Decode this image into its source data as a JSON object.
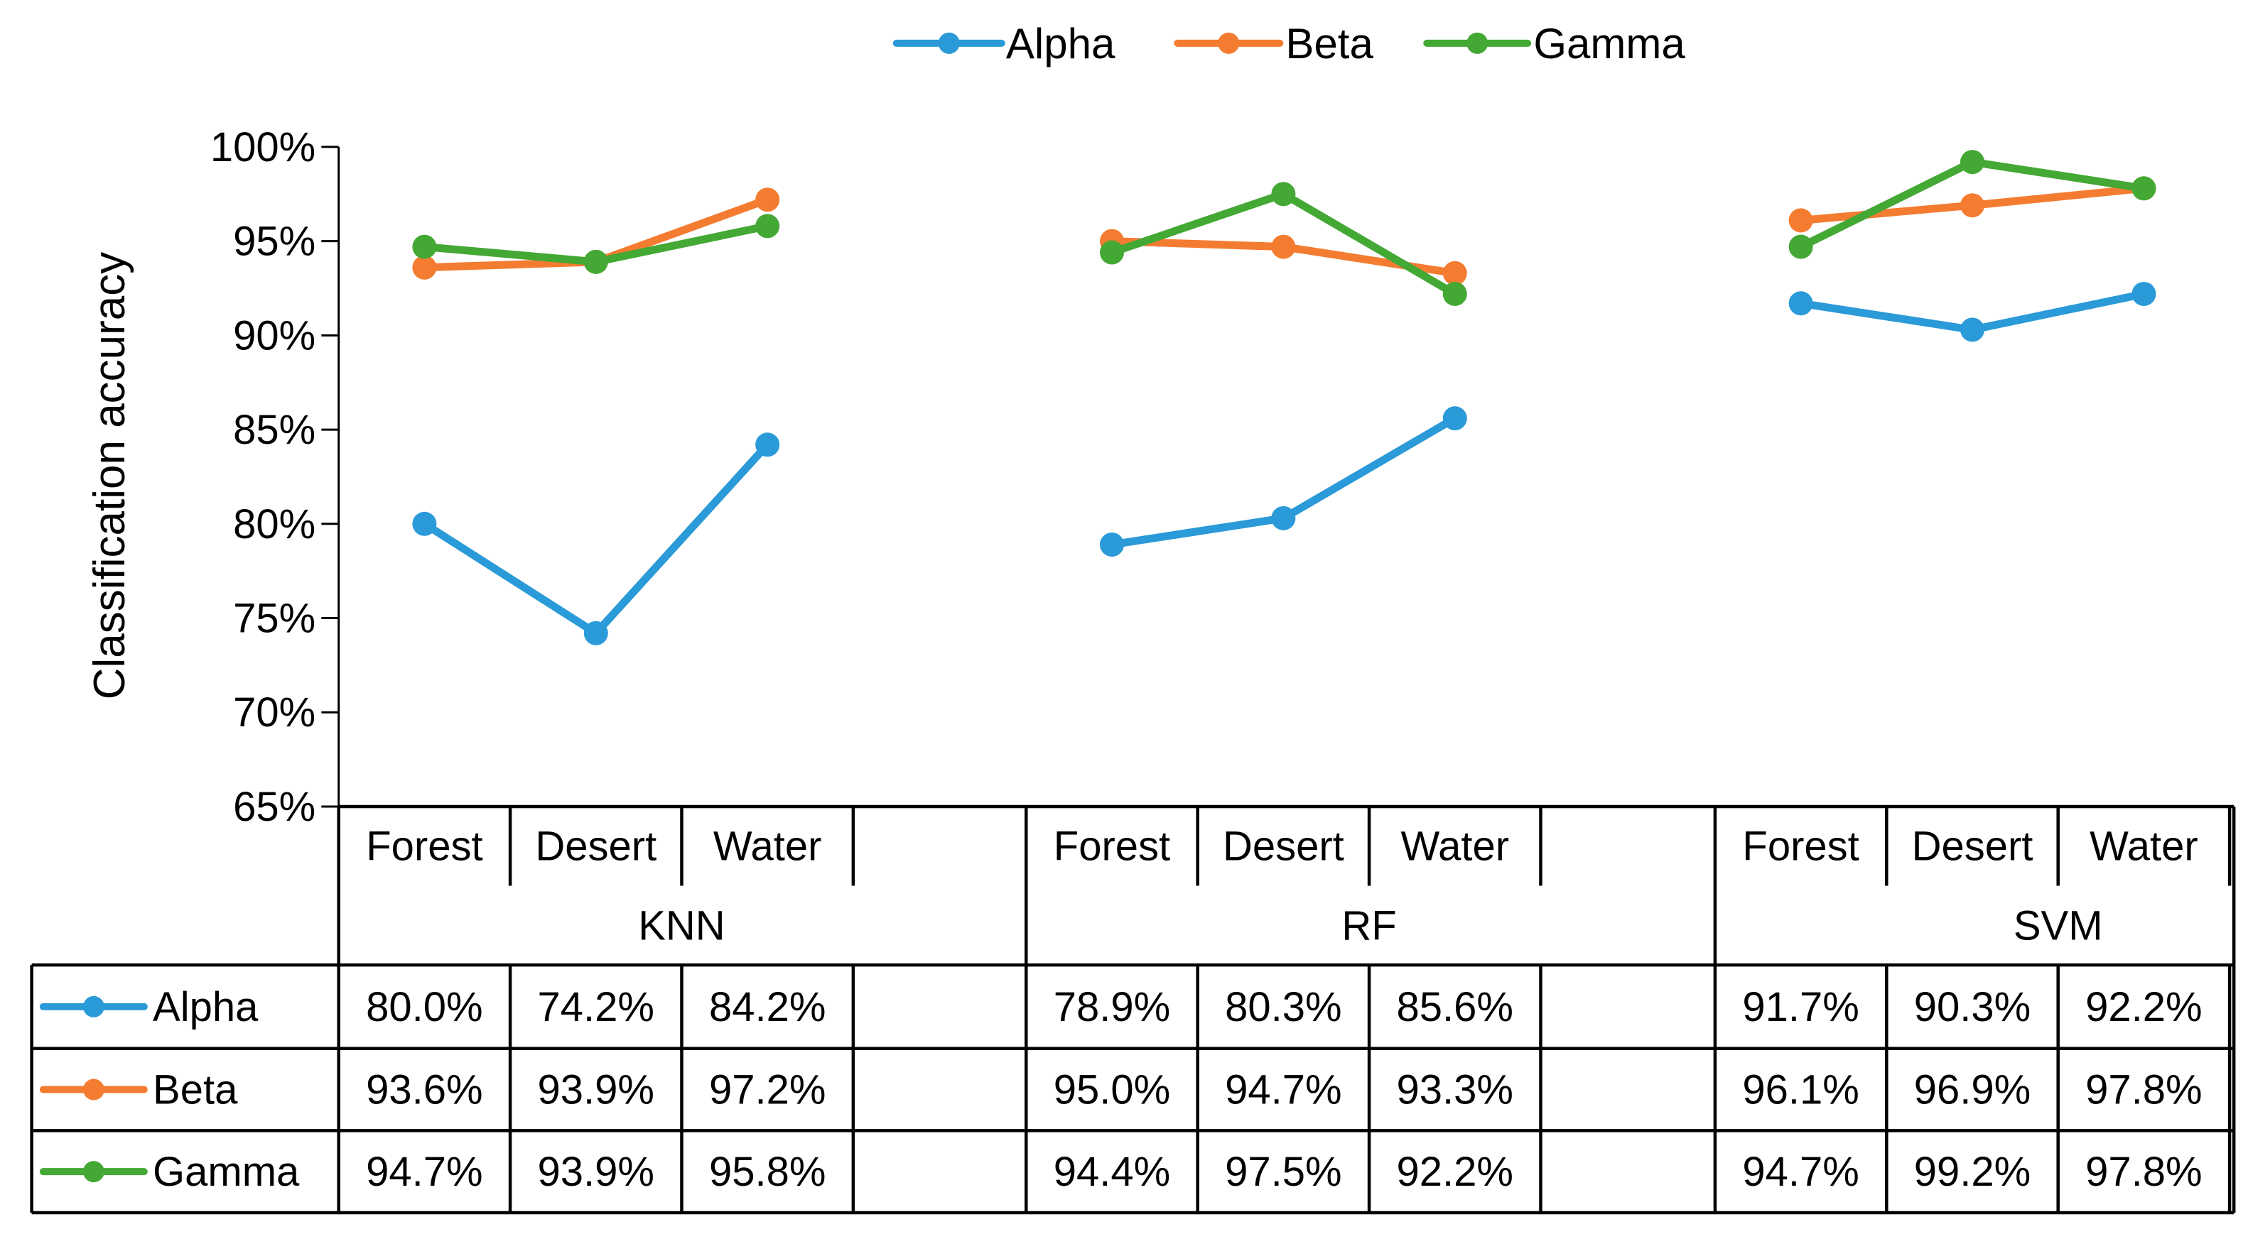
{
  "chart_data": {
    "type": "line",
    "title": "",
    "xlabel": "",
    "ylabel": "Classification accuracy",
    "ylim": [
      65,
      100
    ],
    "yticks": [
      65,
      70,
      75,
      80,
      85,
      90,
      95,
      100
    ],
    "yticklabels": [
      "65%",
      "70%",
      "75%",
      "80%",
      "85%",
      "90%",
      "95%",
      "100%"
    ],
    "legend_position": "top-center",
    "groups": [
      {
        "name": "KNN",
        "categories": [
          "Forest",
          "Desert",
          "Water"
        ]
      },
      {
        "name": "RF",
        "categories": [
          "Forest",
          "Desert",
          "Water"
        ]
      },
      {
        "name": "SVM",
        "categories": [
          "Forest",
          "Desert",
          "Water"
        ]
      }
    ],
    "series": [
      {
        "name": "Alpha",
        "color": "#2A9AD8",
        "values": [
          [
            80.0,
            74.2,
            84.2
          ],
          [
            78.9,
            80.3,
            85.6
          ],
          [
            91.7,
            90.3,
            92.2
          ]
        ],
        "labels": [
          [
            "80.0%",
            "74.2%",
            "84.2%"
          ],
          [
            "78.9%",
            "80.3%",
            "85.6%"
          ],
          [
            "91.7%",
            "90.3%",
            "92.2%"
          ]
        ]
      },
      {
        "name": "Beta",
        "color": "#F47C30",
        "values": [
          [
            93.6,
            93.9,
            97.2
          ],
          [
            95.0,
            94.7,
            93.3
          ],
          [
            96.1,
            96.9,
            97.8
          ]
        ],
        "labels": [
          [
            "93.6%",
            "93.9%",
            "97.2%"
          ],
          [
            "95.0%",
            "94.7%",
            "93.3%"
          ],
          [
            "96.1%",
            "96.9%",
            "97.8%"
          ]
        ]
      },
      {
        "name": "Gamma",
        "color": "#43A834",
        "values": [
          [
            94.7,
            93.9,
            95.8
          ],
          [
            94.4,
            97.5,
            92.2
          ],
          [
            94.7,
            99.2,
            97.8
          ]
        ],
        "labels": [
          [
            "94.7%",
            "93.9%",
            "95.8%"
          ],
          [
            "94.4%",
            "97.5%",
            "92.2%"
          ],
          [
            "94.7%",
            "99.2%",
            "97.8%"
          ]
        ]
      }
    ]
  }
}
